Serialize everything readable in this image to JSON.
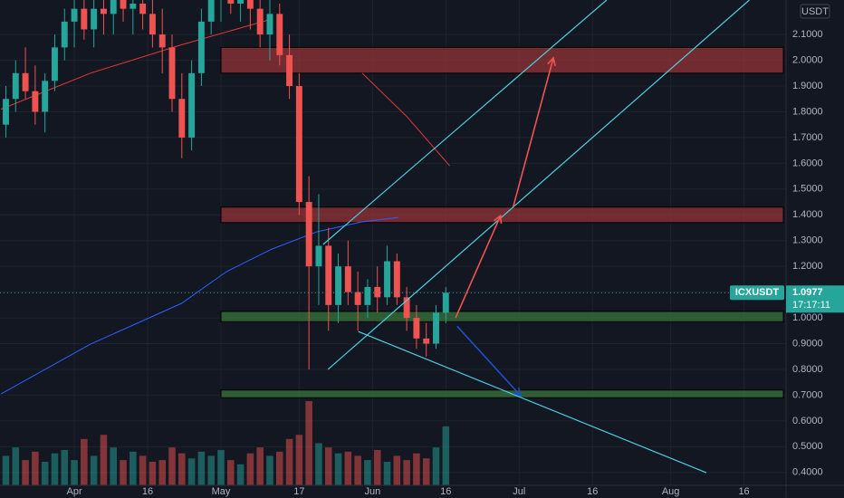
{
  "chart_data": {
    "type": "candlestick",
    "symbol": "ICXUSDT",
    "currency": "USDT",
    "last_price": 1.0977,
    "countdown": "17:17:11",
    "x": [
      -14,
      -12,
      -10,
      -8,
      -6,
      -4,
      -2,
      0,
      2,
      4,
      6,
      8,
      10,
      12,
      14,
      16,
      18,
      20,
      22,
      24,
      26,
      28,
      30,
      32,
      34,
      36,
      38,
      40,
      42,
      44,
      46,
      48,
      50,
      52,
      54,
      56,
      58,
      60,
      62,
      64,
      66,
      68,
      70,
      72,
      74,
      76
    ],
    "open": [
      1.75,
      1.85,
      1.95,
      1.88,
      1.8,
      1.92,
      2.05,
      2.15,
      2.2,
      2.12,
      2.2,
      2.18,
      2.25,
      2.2,
      2.22,
      2.18,
      2.1,
      2.05,
      1.85,
      1.7,
      1.95,
      2.15,
      2.25,
      2.28,
      2.22,
      2.25,
      2.2,
      2.1,
      2.18,
      2.02,
      1.9,
      1.45,
      1.2,
      1.28,
      1.05,
      1.2,
      1.1,
      1.05,
      1.12,
      1.08,
      1.22,
      1.08,
      1.0,
      0.92,
      0.9,
      1.02
    ],
    "high": [
      1.9,
      2.0,
      2.05,
      1.98,
      1.95,
      2.1,
      2.2,
      2.25,
      2.25,
      2.24,
      2.25,
      2.3,
      2.3,
      2.28,
      2.3,
      2.26,
      2.2,
      2.1,
      1.95,
      2.0,
      2.2,
      2.3,
      2.3,
      2.3,
      2.3,
      2.3,
      2.28,
      2.25,
      2.22,
      2.1,
      1.95,
      1.55,
      1.48,
      1.35,
      1.25,
      1.3,
      1.18,
      1.15,
      1.2,
      1.28,
      1.25,
      1.12,
      1.05,
      0.98,
      1.05,
      1.12
    ],
    "low": [
      1.7,
      1.8,
      1.85,
      1.75,
      1.72,
      1.88,
      2.0,
      2.05,
      2.08,
      2.05,
      2.1,
      2.1,
      2.15,
      2.1,
      2.12,
      2.05,
      1.95,
      1.8,
      1.62,
      1.65,
      1.9,
      2.1,
      2.15,
      2.18,
      2.15,
      2.12,
      2.05,
      2.0,
      1.98,
      1.85,
      1.4,
      0.8,
      1.05,
      0.95,
      0.98,
      1.05,
      0.95,
      1.0,
      1.02,
      1.05,
      1.05,
      0.95,
      0.88,
      0.85,
      0.88,
      0.98
    ],
    "close": [
      1.85,
      1.95,
      1.88,
      1.8,
      1.92,
      2.05,
      2.15,
      2.2,
      2.12,
      2.2,
      2.18,
      2.25,
      2.2,
      2.22,
      2.18,
      2.1,
      2.05,
      1.85,
      1.7,
      1.95,
      2.15,
      2.25,
      2.28,
      2.22,
      2.25,
      2.2,
      2.1,
      2.18,
      2.02,
      1.9,
      1.45,
      1.2,
      1.28,
      1.05,
      1.2,
      1.1,
      1.05,
      1.12,
      1.08,
      1.22,
      1.08,
      1.0,
      0.92,
      0.9,
      1.02,
      1.0977
    ],
    "volume": [
      35,
      45,
      30,
      40,
      28,
      38,
      42,
      30,
      55,
      35,
      60,
      45,
      30,
      40,
      35,
      28,
      30,
      45,
      38,
      32,
      40,
      35,
      42,
      30,
      25,
      38,
      45,
      35,
      40,
      55,
      60,
      100,
      50,
      45,
      38,
      40,
      35,
      30,
      42,
      28,
      35,
      30,
      38,
      32,
      45,
      70
    ],
    "vlim": [
      0,
      100
    ],
    "ma_slow": {
      "color": "#2962ff",
      "x": [
        -15,
        3.3,
        21.9,
        31.1,
        40.4,
        49.6,
        58.9,
        66.3
      ],
      "values": [
        0.705,
        0.898,
        1.056,
        1.179,
        1.267,
        1.334,
        1.373,
        1.39
      ]
    },
    "ma_fast": {
      "color": "#e53935",
      "x": [
        -15,
        3.3,
        21.9,
        40.4,
        50,
        58.9,
        68.1,
        76.8
      ],
      "values": [
        1.81,
        1.95,
        2.06,
        2.16,
        null,
        1.95,
        1.78,
        1.59
      ]
    },
    "zones": [
      {
        "from": 30,
        "low": 1.95,
        "high": 2.05,
        "color": "#b2383a"
      },
      {
        "from": 30,
        "low": 1.37,
        "high": 1.43,
        "color": "#b2383a"
      },
      {
        "from": 30,
        "low": 0.985,
        "high": 1.025,
        "color": "#3f8a42"
      },
      {
        "from": 30,
        "low": 0.69,
        "high": 0.72,
        "color": "#3f8a42"
      }
    ],
    "trendlines": [
      {
        "x": [
          50.9,
          108.9
        ],
        "y": [
          1.285,
          2.234
        ]
      },
      {
        "x": [
          51.9,
          138.1
        ],
        "y": [
          0.8,
          2.234
        ]
      },
      {
        "x": [
          58.1,
          129.3
        ],
        "y": [
          0.947,
          0.399
        ]
      }
    ],
    "arrows": [
      {
        "color": "#f05350",
        "x": [
          78,
          87.2
        ],
        "y": [
          1.0,
          1.397
        ]
      },
      {
        "color": "#f05350",
        "x": [
          89.8,
          98
        ],
        "y": [
          1.432,
          2.009
        ]
      },
      {
        "color": "#1e50c8",
        "x": [
          78.3,
          91.3
        ],
        "y": [
          0.968,
          0.698
        ]
      }
    ],
    "xlim": [
      -15.2,
      145.6
    ],
    "ylim": [
      0.35,
      2.234
    ],
    "grid": true,
    "xticks": [
      {
        "value": 0,
        "label": "Apr"
      },
      {
        "value": 15,
        "label": "16"
      },
      {
        "value": 30,
        "label": "May"
      },
      {
        "value": 46,
        "label": "17"
      },
      {
        "value": 61,
        "label": "Jun"
      },
      {
        "value": 76,
        "label": "16"
      },
      {
        "value": 91,
        "label": "Jul"
      },
      {
        "value": 106,
        "label": "16"
      },
      {
        "value": 122,
        "label": "Aug"
      },
      {
        "value": 137,
        "label": "16"
      }
    ],
    "yticks": [
      {
        "value": 0.4,
        "label": "0.4000"
      },
      {
        "value": 0.5,
        "label": "0.5000"
      },
      {
        "value": 0.6,
        "label": "0.6000"
      },
      {
        "value": 0.7,
        "label": "0.7000"
      },
      {
        "value": 0.8,
        "label": "0.8000"
      },
      {
        "value": 0.9,
        "label": "0.9000"
      },
      {
        "value": 1.0,
        "label": "1.0000"
      },
      {
        "value": 1.1,
        "label": "1.1000"
      },
      {
        "value": 1.2,
        "label": "1.2000"
      },
      {
        "value": 1.3,
        "label": "1.3000"
      },
      {
        "value": 1.4,
        "label": "1.4000"
      },
      {
        "value": 1.5,
        "label": "1.5000"
      },
      {
        "value": 1.6,
        "label": "1.6000"
      },
      {
        "value": 1.7,
        "label": "1.7000"
      },
      {
        "value": 1.8,
        "label": "1.8000"
      },
      {
        "value": 1.9,
        "label": "1.9000"
      },
      {
        "value": 2.0,
        "label": "2.0000"
      },
      {
        "value": 2.1,
        "label": "2.1000"
      }
    ],
    "up_color": "#26a69a",
    "down_color": "#ef5350",
    "line_color": "#4dd0e1"
  }
}
